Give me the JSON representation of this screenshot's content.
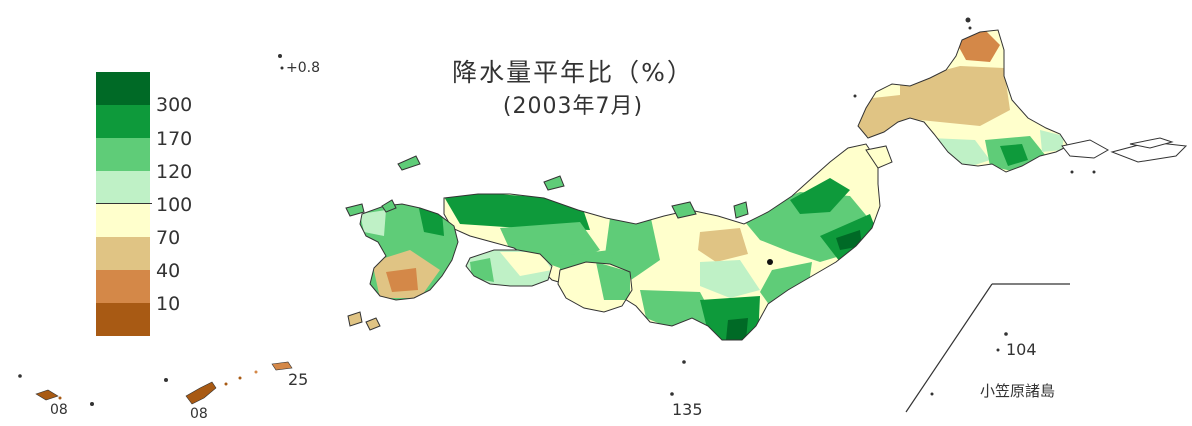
{
  "title": "降水量平年比（%）",
  "subtitle": "(2003年7月)",
  "legend": {
    "items": [
      {
        "color": "#006a26"
      },
      {
        "color": "#0e9a3b",
        "label": "300"
      },
      {
        "color": "#5fcc78",
        "label": "170"
      },
      {
        "color": "#bff1c6",
        "label": "120"
      },
      {
        "color": "#ffffcc",
        "label": "100"
      },
      {
        "color": "#e0c484",
        "label": "70"
      },
      {
        "color": "#d48848",
        "label": "40"
      },
      {
        "color": "#a85a14",
        "label": "10"
      }
    ]
  },
  "island_labels": {
    "minami_daito": "08",
    "okinawa_west": "08",
    "okinawa_main": "08",
    "amami": "25",
    "meridian": "135",
    "chichijima": "104",
    "ogasawara": "小笠原諸島"
  }
}
